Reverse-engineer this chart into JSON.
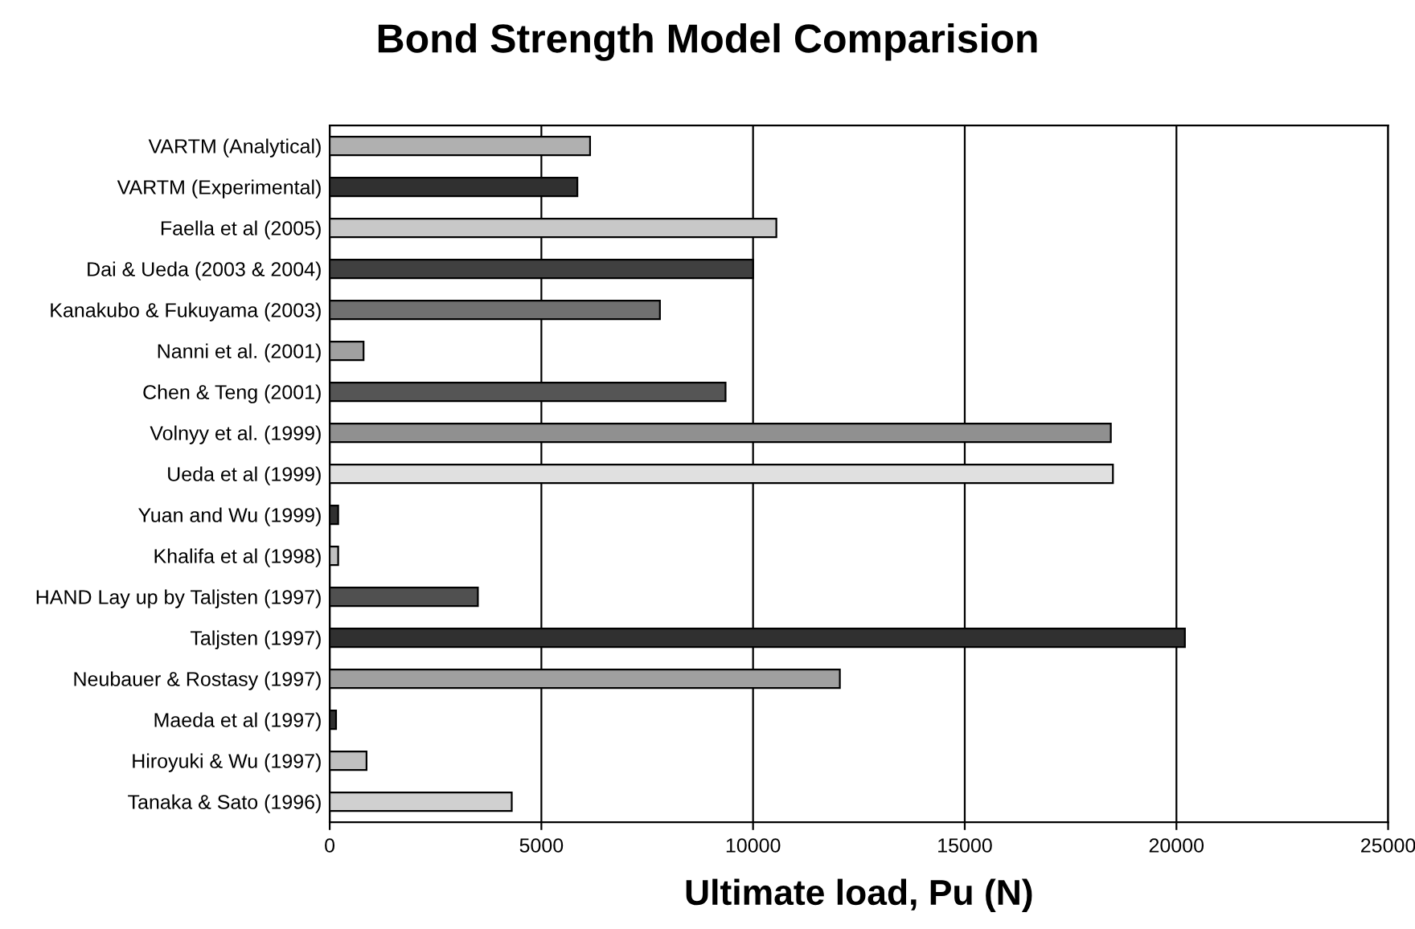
{
  "chart_data": {
    "type": "bar",
    "orientation": "horizontal",
    "title": "Bond Strength Model Comparision",
    "xlabel": "Ultimate load, Pu (N)",
    "categories": [
      "VARTM (Analytical)",
      "VARTM (Experimental)",
      "Faella et al (2005)",
      "Dai & Ueda (2003 & 2004)",
      "Kanakubo & Fukuyama (2003)",
      "Nanni et al. (2001)",
      "Chen & Teng (2001)",
      "Volnyy et al. (1999)",
      "Ueda et al (1999)",
      "Yuan and Wu (1999)",
      "Khalifa et al (1998)",
      "HAND Lay up by Taljsten (1997)",
      "Taljsten (1997)",
      "Neubauer & Rostasy (1997)",
      "Maeda et al (1997)",
      "Hiroyuki & Wu (1997)",
      "Tanaka & Sato (1996)"
    ],
    "values": [
      6150,
      5850,
      10550,
      10000,
      7800,
      800,
      9350,
      18450,
      18500,
      200,
      200,
      3500,
      20200,
      12050,
      150,
      870,
      4300
    ],
    "colors": [
      "#b0b0b0",
      "#303030",
      "#c8c8c8",
      "#404040",
      "#707070",
      "#a0a0a0",
      "#555555",
      "#909090",
      "#e0e0e0",
      "#303030",
      "#c0c0c0",
      "#505050",
      "#303030",
      "#a0a0a0",
      "#303030",
      "#c0c0c0",
      "#d0d0d0"
    ],
    "xlim": [
      0,
      25000
    ],
    "xticks": [
      0,
      5000,
      10000,
      15000,
      20000,
      25000
    ],
    "grid": "x"
  }
}
